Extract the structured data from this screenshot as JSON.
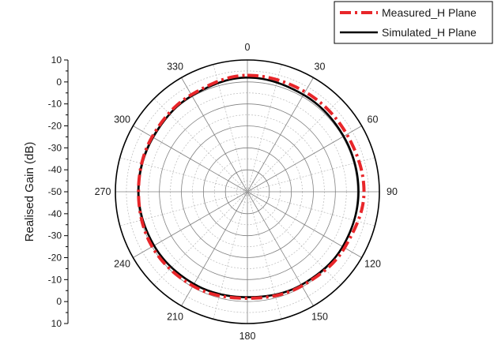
{
  "chart_data": {
    "type": "polar-line",
    "ylabel": "Realised Gain (dB)",
    "radial_range_db": [
      -50,
      10
    ],
    "radial_ticks": [
      "10",
      "0",
      "-10",
      "-20",
      "-30",
      "-40",
      "-50",
      "-40",
      "-30",
      "-20",
      "-10",
      "0",
      "10"
    ],
    "angle_labels": [
      "0",
      "30",
      "60",
      "90",
      "120",
      "150",
      "180",
      "210",
      "240",
      "270",
      "300",
      "330"
    ],
    "angle_step_deg": 30,
    "grid": true,
    "legend_position": "top-right",
    "series": [
      {
        "name": "Measured_H Plane",
        "color": "#e8262a",
        "style": "dash-dot",
        "theta_deg": [
          0,
          30,
          60,
          90,
          120,
          150,
          180,
          210,
          240,
          270,
          300,
          330,
          360
        ],
        "gain_db": [
          3,
          2.5,
          2.2,
          3,
          1,
          -0.5,
          -1.5,
          -0.5,
          0,
          -0.5,
          0,
          1,
          3
        ]
      },
      {
        "name": "Simulated_H Plane",
        "color": "#000000",
        "style": "solid",
        "theta_deg": [
          0,
          30,
          60,
          90,
          120,
          150,
          180,
          210,
          240,
          270,
          300,
          330,
          360
        ],
        "gain_db": [
          2,
          1,
          0.5,
          0.5,
          0,
          -1,
          -2,
          -1.5,
          -1,
          -0.5,
          -0.5,
          0.5,
          2
        ]
      }
    ]
  }
}
